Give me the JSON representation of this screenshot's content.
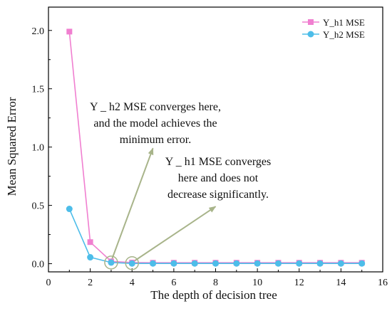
{
  "chart_data": {
    "type": "line",
    "title": "",
    "xlabel": "The depth of decision tree",
    "ylabel": "Mean Squared Error",
    "xlim": [
      0,
      16
    ],
    "ylim": [
      -0.07,
      2.2
    ],
    "x_ticks": [
      0,
      2,
      4,
      6,
      8,
      10,
      12,
      14,
      16
    ],
    "y_ticks": [
      0.0,
      0.5,
      1.0,
      1.5,
      2.0
    ],
    "x_tick_labels": [
      "0",
      "2",
      "4",
      "6",
      "8",
      "10",
      "12",
      "14",
      "16"
    ],
    "y_tick_labels": [
      "0.0",
      "0.5",
      "1.0",
      "1.5",
      "2.0"
    ],
    "grid": false,
    "legend_position": "top-right",
    "x": [
      1,
      2,
      3,
      4,
      5,
      6,
      7,
      8,
      9,
      10,
      11,
      12,
      13,
      14,
      15
    ],
    "series": [
      {
        "name": "Y_h1 MSE",
        "color": "#f07fd0",
        "marker": "square",
        "values": [
          1.99,
          0.185,
          0.02,
          0.01,
          0.008,
          0.008,
          0.008,
          0.008,
          0.008,
          0.008,
          0.008,
          0.008,
          0.008,
          0.008,
          0.008
        ]
      },
      {
        "name": "Y_h2 MSE",
        "color": "#4dbde9",
        "marker": "circle",
        "values": [
          0.47,
          0.055,
          0.01,
          0.002,
          0.002,
          0.002,
          0.002,
          0.002,
          0.002,
          0.002,
          0.002,
          0.002,
          0.002,
          0.002,
          0.002
        ]
      }
    ],
    "annotations": [
      {
        "lines": [
          "Y _ h2 MSE converges here,",
          "and the model achieves the",
          "minimum error."
        ],
        "arrow_from": [
          3,
          0.02
        ],
        "arrow_to": [
          5,
          0.99
        ]
      },
      {
        "lines": [
          "Y _ h1 MSE converges",
          "here and does not",
          "decrease significantly."
        ],
        "arrow_from": [
          4,
          0.01
        ],
        "arrow_to": [
          8,
          0.49
        ]
      }
    ],
    "highlight_circles": [
      {
        "x": 3,
        "y": 0.01
      },
      {
        "x": 4,
        "y": 0.005
      }
    ],
    "arrow_color": "#a8b48a",
    "highlight_color": "#a8b48a"
  }
}
